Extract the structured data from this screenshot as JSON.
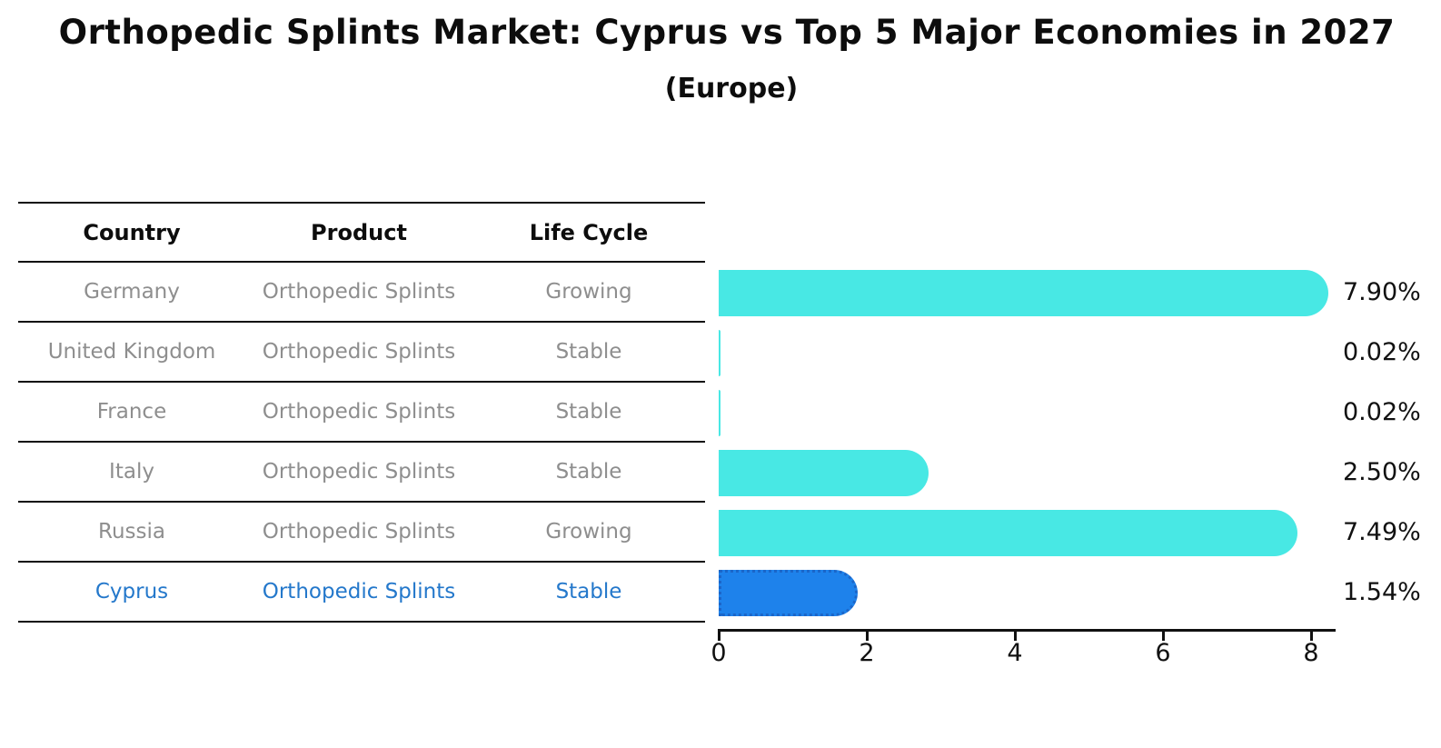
{
  "title": "Orthopedic Splints Market: Cyprus vs Top 5 Major Economies in 2027",
  "subtitle": "(Europe)",
  "table": {
    "headers": [
      "Country",
      "Product",
      "Life Cycle"
    ],
    "rows": [
      {
        "country": "Germany",
        "product": "Orthopedic Splints",
        "life_cycle": "Growing",
        "highlighted": false
      },
      {
        "country": "United Kingdom",
        "product": "Orthopedic Splints",
        "life_cycle": "Stable",
        "highlighted": false
      },
      {
        "country": "France",
        "product": "Orthopedic Splints",
        "life_cycle": "Stable",
        "highlighted": false
      },
      {
        "country": "Italy",
        "product": "Orthopedic Splints",
        "life_cycle": "Stable",
        "highlighted": false
      },
      {
        "country": "Russia",
        "product": "Orthopedic Splints",
        "life_cycle": "Growing",
        "highlighted": false
      },
      {
        "country": "Cyprus",
        "product": "Orthopedic Splints",
        "life_cycle": "Stable",
        "highlighted": true
      }
    ]
  },
  "chart_data": {
    "type": "bar",
    "orientation": "horizontal",
    "categories": [
      "Germany",
      "United Kingdom",
      "France",
      "Italy",
      "Russia",
      "Cyprus"
    ],
    "values": [
      7.9,
      0.02,
      0.02,
      2.5,
      7.49,
      1.54
    ],
    "value_labels": [
      "7.90%",
      "0.02%",
      "0.02%",
      "2.50%",
      "7.49%",
      "1.54%"
    ],
    "xticks": [
      0,
      2,
      4,
      6,
      8
    ],
    "xtick_labels": [
      "0",
      "2",
      "4",
      "6",
      "8"
    ],
    "xlim": [
      0,
      8.3
    ],
    "grid": false,
    "legend": false,
    "highlight_index": 5,
    "title": "Orthopedic Splints Market: Cyprus vs Top 5 Major Economies in 2027 (Europe)"
  },
  "colors": {
    "bar_default": "#48e8e4",
    "bar_highlight": "#1e82eb",
    "highlight_border": "#1b66c9",
    "highlight_text": "#2478cb",
    "table_text": "#8e8e8e",
    "heading_text": "#0d0d0d",
    "axis": "#111111"
  }
}
